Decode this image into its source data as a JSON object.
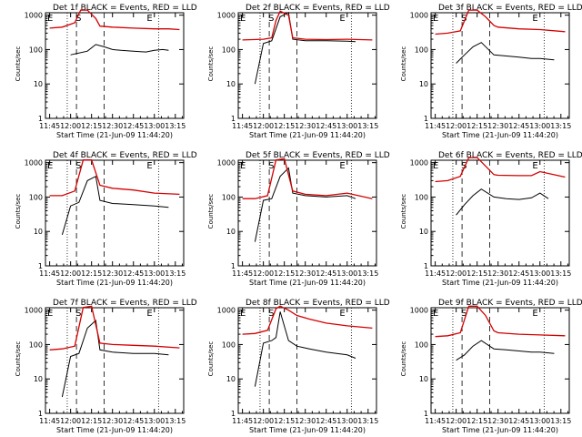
{
  "chart_data": [
    {
      "type": "line",
      "title": "Det 1f BLACK = Events, RED = LLD",
      "xlabel": "Start Time (21-Jun-09 11:44:20)",
      "ylabel": "Counts/sec",
      "xticks": [
        "11:45",
        "12:00",
        "12:15",
        "12:30",
        "12:45",
        "13:00",
        "13:15"
      ],
      "yticks": [
        "1",
        "10",
        "100",
        "1000"
      ],
      "ylim": [
        1,
        1000
      ],
      "yscale": "log",
      "markers": [
        "E",
        "S",
        "E"
      ],
      "series": [
        {
          "color": "#000000",
          "x": [
            12.0,
            12.05,
            12.2,
            12.3,
            12.4,
            12.5,
            12.6,
            12.75,
            12.9,
            13.0,
            13.1,
            13.17
          ],
          "y": [
            70,
            75,
            90,
            140,
            120,
            100,
            95,
            90,
            85,
            95,
            100,
            95
          ]
        },
        {
          "color": "#d40000",
          "x": [
            11.75,
            11.9,
            12.05,
            12.12,
            12.2,
            12.3,
            12.35,
            12.5,
            12.75,
            13.0,
            13.17,
            13.3
          ],
          "y": [
            420,
            450,
            600,
            1400,
            1400,
            800,
            480,
            450,
            420,
            400,
            400,
            380
          ]
        }
      ]
    },
    {
      "type": "line",
      "title": "Det 2f BLACK = Events, RED = LLD",
      "xlabel": "Start Time (21-Jun-09 11:44:20)",
      "ylabel": "Counts/sec",
      "xticks": [
        "11:45",
        "12:00",
        "12:15",
        "12:30",
        "12:45",
        "13:00",
        "13:15"
      ],
      "yticks": [
        "1",
        "10",
        "100",
        "1000"
      ],
      "ylim": [
        1,
        1000
      ],
      "yscale": "log",
      "markers": [
        "E",
        "S",
        "E"
      ],
      "series": [
        {
          "color": "#000000",
          "x": [
            11.9,
            12.0,
            12.1,
            12.2,
            12.3,
            12.35,
            12.5,
            12.75,
            13.0,
            13.1
          ],
          "y": [
            10,
            150,
            180,
            900,
            1200,
            200,
            180,
            180,
            175,
            170
          ]
        },
        {
          "color": "#d40000",
          "x": [
            11.75,
            12.0,
            12.1,
            12.15,
            12.2,
            12.3,
            12.35,
            12.5,
            12.75,
            13.0,
            13.3
          ],
          "y": [
            190,
            200,
            220,
            700,
            1300,
            1000,
            220,
            200,
            195,
            200,
            190
          ]
        }
      ]
    },
    {
      "type": "line",
      "title": "Det 3f BLACK = Events, RED = LLD",
      "xlabel": "Start Time (21-Jun-09 11:44:20)",
      "ylabel": "Counts/sec",
      "xticks": [
        "11:45",
        "12:00",
        "12:15",
        "12:30",
        "12:45",
        "13:00",
        "13:15"
      ],
      "yticks": [
        "1",
        "10",
        "100",
        "1000"
      ],
      "ylim": [
        1,
        1000
      ],
      "yscale": "log",
      "markers": [
        "E",
        "S",
        "E"
      ],
      "series": [
        {
          "color": "#000000",
          "x": [
            12.0,
            12.1,
            12.2,
            12.3,
            12.45,
            12.6,
            12.75,
            12.9,
            13.0,
            13.17
          ],
          "y": [
            40,
            70,
            120,
            160,
            70,
            65,
            60,
            55,
            55,
            50
          ]
        },
        {
          "color": "#d40000",
          "x": [
            11.75,
            11.9,
            12.05,
            12.15,
            12.25,
            12.35,
            12.45,
            12.5,
            12.75,
            13.0,
            13.3
          ],
          "y": [
            280,
            300,
            350,
            1400,
            1400,
            900,
            500,
            450,
            400,
            380,
            330
          ]
        }
      ]
    },
    {
      "type": "line",
      "title": "Det 4f BLACK = Events, RED = LLD",
      "xlabel": "Start Time (21-Jun-09 11:44:20)",
      "ylabel": "Counts/sec",
      "xticks": [
        "11:45",
        "12:00",
        "12:15",
        "12:30",
        "12:45",
        "13:00",
        "13:15"
      ],
      "yticks": [
        "1",
        "10",
        "100",
        "1000"
      ],
      "ylim": [
        1,
        1000
      ],
      "yscale": "log",
      "markers": [
        "E",
        "S",
        "E"
      ],
      "series": [
        {
          "color": "#000000",
          "x": [
            11.9,
            12.0,
            12.1,
            12.2,
            12.3,
            12.35,
            12.5,
            12.75,
            13.0,
            13.17
          ],
          "y": [
            8,
            55,
            70,
            300,
            400,
            80,
            65,
            60,
            55,
            50
          ]
        },
        {
          "color": "#d40000",
          "x": [
            11.75,
            11.9,
            12.05,
            12.15,
            12.25,
            12.35,
            12.5,
            12.75,
            13.0,
            13.3
          ],
          "y": [
            110,
            110,
            150,
            1200,
            1200,
            220,
            180,
            160,
            130,
            120
          ]
        }
      ]
    },
    {
      "type": "line",
      "title": "Det 5f BLACK = Events, RED = LLD",
      "xlabel": "Start Time (21-Jun-09 11:44:20)",
      "ylabel": "Counts/sec",
      "xticks": [
        "11:45",
        "12:00",
        "12:15",
        "12:30",
        "12:45",
        "13:00",
        "13:15"
      ],
      "yticks": [
        "1",
        "10",
        "100",
        "1000"
      ],
      "ylim": [
        1,
        1000
      ],
      "yscale": "log",
      "markers": [
        "E",
        "S",
        "E"
      ],
      "series": [
        {
          "color": "#000000",
          "x": [
            11.9,
            12.0,
            12.1,
            12.2,
            12.3,
            12.35,
            12.5,
            12.75,
            13.0,
            13.1
          ],
          "y": [
            5,
            80,
            90,
            400,
            700,
            130,
            110,
            100,
            110,
            90
          ]
        },
        {
          "color": "#d40000",
          "x": [
            11.75,
            11.9,
            12.05,
            12.15,
            12.25,
            12.35,
            12.5,
            12.75,
            13.0,
            13.3
          ],
          "y": [
            90,
            90,
            110,
            1200,
            1300,
            150,
            120,
            110,
            130,
            90
          ]
        }
      ]
    },
    {
      "type": "line",
      "title": "Det 6f BLACK = Events, RED = LLD",
      "xlabel": "Start Time (21-Jun-09 11:44:20)",
      "ylabel": "Counts/sec",
      "xticks": [
        "11:45",
        "12:00",
        "12:15",
        "12:30",
        "12:45",
        "13:00",
        "13:15"
      ],
      "yticks": [
        "1",
        "10",
        "100",
        "1000"
      ],
      "ylim": [
        1,
        1000
      ],
      "yscale": "log",
      "markers": [
        "E",
        "S",
        "E"
      ],
      "series": [
        {
          "color": "#000000",
          "x": [
            12.0,
            12.1,
            12.2,
            12.3,
            12.45,
            12.6,
            12.75,
            12.9,
            13.0,
            13.1
          ],
          "y": [
            30,
            60,
            110,
            170,
            100,
            90,
            85,
            95,
            130,
            90
          ]
        },
        {
          "color": "#d40000",
          "x": [
            11.75,
            11.9,
            12.05,
            12.15,
            12.25,
            12.35,
            12.45,
            12.5,
            12.75,
            12.9,
            13.0,
            13.3
          ],
          "y": [
            280,
            300,
            400,
            1400,
            1400,
            800,
            450,
            430,
            420,
            420,
            550,
            380
          ]
        }
      ]
    },
    {
      "type": "line",
      "title": "Det 7f BLACK = Events, RED = LLD",
      "xlabel": "Start Time (21-Jun-09 11:44:20)",
      "ylabel": "Counts/sec",
      "xticks": [
        "11:45",
        "12:00",
        "12:15",
        "12:30",
        "12:45",
        "13:00",
        "13:15"
      ],
      "yticks": [
        "1",
        "10",
        "100",
        "1000"
      ],
      "ylim": [
        1,
        1000
      ],
      "yscale": "log",
      "markers": [
        "E",
        "S",
        "E"
      ],
      "series": [
        {
          "color": "#000000",
          "x": [
            11.9,
            12.0,
            12.1,
            12.2,
            12.3,
            12.35,
            12.5,
            12.75,
            13.0,
            13.17
          ],
          "y": [
            3,
            45,
            55,
            300,
            500,
            70,
            60,
            55,
            55,
            50
          ]
        },
        {
          "color": "#d40000",
          "x": [
            11.75,
            11.9,
            12.05,
            12.15,
            12.25,
            12.35,
            12.5,
            12.75,
            13.0,
            13.3
          ],
          "y": [
            70,
            75,
            90,
            1200,
            1300,
            110,
            100,
            95,
            90,
            80
          ]
        }
      ]
    },
    {
      "type": "line",
      "title": "Det 8f BLACK = Events, RED = LLD",
      "xlabel": "Start Time (21-Jun-09 11:44:20)",
      "ylabel": "Counts/sec",
      "xticks": [
        "11:45",
        "12:00",
        "12:15",
        "12:30",
        "12:45",
        "13:00",
        "13:15"
      ],
      "yticks": [
        "1",
        "10",
        "100",
        "1000"
      ],
      "ylim": [
        1,
        1000
      ],
      "yscale": "log",
      "markers": [
        "E",
        "S",
        "E"
      ],
      "series": [
        {
          "color": "#000000",
          "x": [
            11.9,
            12.0,
            12.1,
            12.15,
            12.2,
            12.3,
            12.4,
            12.55,
            12.75,
            13.0,
            13.1
          ],
          "y": [
            6,
            110,
            130,
            160,
            900,
            130,
            90,
            75,
            60,
            50,
            40
          ]
        },
        {
          "color": "#d40000",
          "x": [
            11.75,
            11.9,
            12.05,
            12.15,
            12.2,
            12.3,
            12.4,
            12.55,
            12.75,
            13.0,
            13.3
          ],
          "y": [
            200,
            210,
            260,
            1100,
            1300,
            1000,
            700,
            550,
            420,
            350,
            300
          ]
        }
      ]
    },
    {
      "type": "line",
      "title": "Det 9f BLACK = Events, RED = LLD",
      "xlabel": "Start Time (21-Jun-09 11:44:20)",
      "ylabel": "Counts/sec",
      "xticks": [
        "11:45",
        "12:00",
        "12:15",
        "12:30",
        "12:45",
        "13:00",
        "13:15"
      ],
      "yticks": [
        "1",
        "10",
        "100",
        "1000"
      ],
      "ylim": [
        1,
        1000
      ],
      "yscale": "log",
      "markers": [
        "E",
        "S",
        "E"
      ],
      "series": [
        {
          "color": "#000000",
          "x": [
            12.0,
            12.1,
            12.2,
            12.3,
            12.45,
            12.6,
            12.75,
            12.9,
            13.0,
            13.17
          ],
          "y": [
            35,
            50,
            90,
            130,
            75,
            70,
            65,
            60,
            60,
            55
          ]
        },
        {
          "color": "#d40000",
          "x": [
            11.75,
            11.9,
            12.05,
            12.15,
            12.25,
            12.35,
            12.45,
            12.5,
            12.75,
            13.0,
            13.3
          ],
          "y": [
            170,
            180,
            220,
            1300,
            1300,
            700,
            250,
            220,
            200,
            190,
            180
          ]
        }
      ]
    }
  ]
}
